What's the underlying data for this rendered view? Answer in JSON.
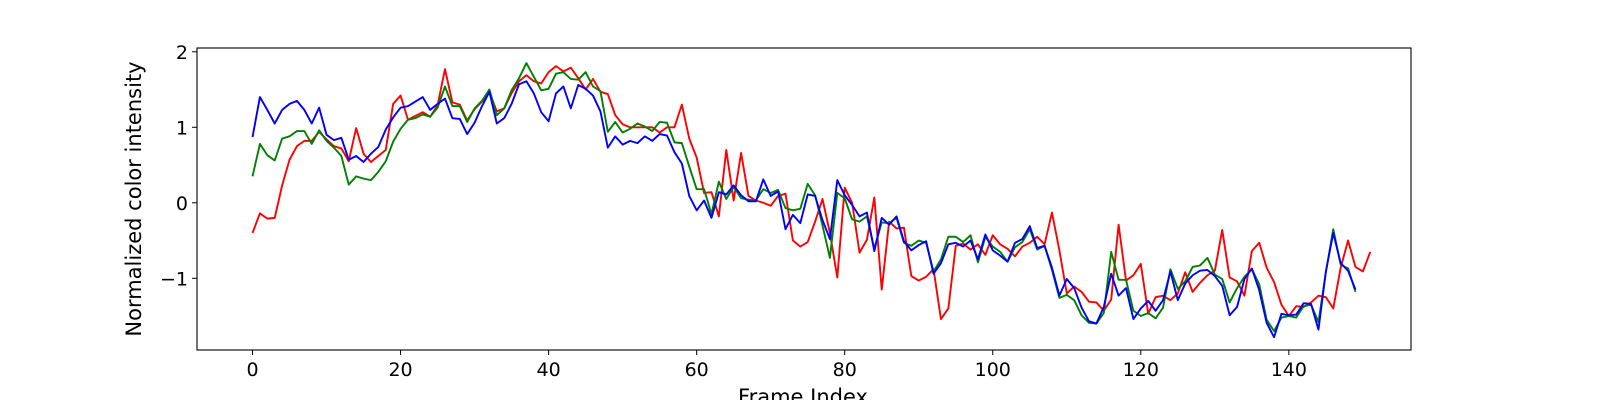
{
  "chart_data": {
    "type": "line",
    "title": "",
    "xlabel": "Frame Index",
    "ylabel": "Normalized color intensity",
    "xlim": [
      -7.5,
      156.5
    ],
    "ylim": [
      -1.95,
      2.05
    ],
    "xticks": [
      0,
      20,
      40,
      60,
      80,
      100,
      120,
      140
    ],
    "yticks": [
      -1,
      0,
      1,
      2
    ],
    "grid": false,
    "legend": "none",
    "series": [
      {
        "color": "#ff0000",
        "values": [
          -0.4,
          -0.14,
          -0.21,
          -0.2,
          0.23,
          0.57,
          0.75,
          0.82,
          0.82,
          0.94,
          0.84,
          0.75,
          0.72,
          0.55,
          0.99,
          0.65,
          0.54,
          0.62,
          0.7,
          1.31,
          1.42,
          1.1,
          1.15,
          1.2,
          1.14,
          1.29,
          1.77,
          1.33,
          1.3,
          1.09,
          1.24,
          1.34,
          1.47,
          1.21,
          1.25,
          1.45,
          1.61,
          1.69,
          1.61,
          1.58,
          1.73,
          1.81,
          1.74,
          1.79,
          1.65,
          1.5,
          1.64,
          1.47,
          1.44,
          1.16,
          1.04,
          1.0,
          1.0,
          1.0,
          1.0,
          0.93,
          1.0,
          1.0,
          1.3,
          0.85,
          0.6,
          0.13,
          0.14,
          -0.18,
          0.7,
          0.03,
          0.66,
          0.09,
          0.03,
          0.0,
          -0.04,
          0.09,
          0.12,
          -0.5,
          -0.58,
          -0.52,
          -0.25,
          0.05,
          -0.4,
          -0.99,
          0.2,
          0.0,
          -0.66,
          -0.49,
          0.07,
          -1.15,
          -0.25,
          -0.34,
          -0.33,
          -0.97,
          -1.03,
          -0.98,
          -0.88,
          -1.54,
          -1.4,
          -0.57,
          -0.54,
          -0.62,
          -0.55,
          -0.69,
          -0.43,
          -0.55,
          -0.61,
          -0.71,
          -0.58,
          -0.53,
          -0.45,
          -0.55,
          -0.13,
          -0.63,
          -1.2,
          -1.11,
          -1.18,
          -1.31,
          -1.32,
          -1.43,
          -1.28,
          -0.29,
          -1.03,
          -0.96,
          -0.81,
          -1.47,
          -1.25,
          -1.23,
          -1.29,
          -1.2,
          -0.92,
          -1.18,
          -1.06,
          -0.96,
          -0.9,
          -0.36,
          -0.99,
          -1.04,
          -1.23,
          -0.64,
          -0.53,
          -0.86,
          -1.05,
          -1.35,
          -1.5,
          -1.37,
          -1.38,
          -1.32,
          -1.23,
          -1.25,
          -1.4,
          -0.86,
          -0.5,
          -0.85,
          -0.91,
          -0.65
        ]
      },
      {
        "color": "#008000",
        "values": [
          0.35,
          0.78,
          0.63,
          0.56,
          0.85,
          0.88,
          0.95,
          0.95,
          0.78,
          0.96,
          0.82,
          0.73,
          0.62,
          0.24,
          0.35,
          0.32,
          0.3,
          0.41,
          0.55,
          0.81,
          0.98,
          1.1,
          1.12,
          1.17,
          1.14,
          1.26,
          1.54,
          1.28,
          1.28,
          1.07,
          1.25,
          1.35,
          1.5,
          1.16,
          1.25,
          1.49,
          1.65,
          1.85,
          1.67,
          1.49,
          1.51,
          1.71,
          1.73,
          1.64,
          1.63,
          1.73,
          1.54,
          1.48,
          0.94,
          1.07,
          0.93,
          0.98,
          1.05,
          1.01,
          0.95,
          1.07,
          1.06,
          0.8,
          0.79,
          0.48,
          0.18,
          0.18,
          -0.15,
          0.28,
          0.05,
          0.21,
          0.06,
          0.04,
          0.03,
          0.18,
          0.13,
          0.17,
          -0.07,
          -0.1,
          -0.08,
          0.25,
          0.1,
          -0.3,
          -0.73,
          0.13,
          0.06,
          -0.22,
          -0.25,
          -0.18,
          -0.61,
          -0.26,
          -0.27,
          -0.2,
          -0.53,
          -0.57,
          -0.5,
          -0.53,
          -0.91,
          -0.75,
          -0.45,
          -0.45,
          -0.52,
          -0.43,
          -0.79,
          -0.45,
          -0.58,
          -0.65,
          -0.78,
          -0.59,
          -0.52,
          -0.35,
          -0.62,
          -0.57,
          -0.89,
          -1.26,
          -1.22,
          -1.29,
          -1.49,
          -1.59,
          -1.6,
          -1.46,
          -0.65,
          -1.02,
          -1.02,
          -1.43,
          -1.5,
          -1.46,
          -1.53,
          -1.39,
          -0.88,
          -1.14,
          -1.04,
          -0.85,
          -0.83,
          -0.73,
          -0.95,
          -1.01,
          -1.32,
          -1.13,
          -0.98,
          -0.88,
          -1.08,
          -1.55,
          -1.7,
          -1.52,
          -1.5,
          -1.52,
          -1.37,
          -1.35,
          -1.58,
          -0.92,
          -0.35,
          -0.82,
          -0.87,
          -1.18
        ]
      },
      {
        "color": "#0000ff",
        "values": [
          0.87,
          1.4,
          1.23,
          1.05,
          1.23,
          1.31,
          1.35,
          1.23,
          1.05,
          1.26,
          0.9,
          0.83,
          0.86,
          0.57,
          0.62,
          0.54,
          0.65,
          0.74,
          0.97,
          1.13,
          1.26,
          1.28,
          1.34,
          1.4,
          1.23,
          1.31,
          1.38,
          1.12,
          1.11,
          0.91,
          1.06,
          1.28,
          1.47,
          1.05,
          1.12,
          1.31,
          1.57,
          1.61,
          1.45,
          1.2,
          1.08,
          1.45,
          1.54,
          1.25,
          1.56,
          1.51,
          1.42,
          1.21,
          0.73,
          0.88,
          0.77,
          0.82,
          0.79,
          0.88,
          0.82,
          0.91,
          0.89,
          0.67,
          0.52,
          0.09,
          -0.1,
          0.03,
          -0.2,
          0.14,
          0.11,
          0.23,
          0.1,
          0.02,
          0.02,
          0.31,
          0.09,
          0.15,
          -0.35,
          -0.16,
          -0.27,
          0.11,
          0.09,
          -0.23,
          -0.48,
          0.3,
          0.1,
          -0.03,
          -0.18,
          -0.13,
          -0.64,
          -0.2,
          -0.29,
          -0.18,
          -0.51,
          -0.63,
          -0.56,
          -0.51,
          -0.94,
          -0.8,
          -0.55,
          -0.53,
          -0.58,
          -0.5,
          -0.75,
          -0.42,
          -0.63,
          -0.7,
          -0.78,
          -0.53,
          -0.48,
          -0.31,
          -0.6,
          -0.57,
          -0.86,
          -1.23,
          -1.01,
          -1.13,
          -1.39,
          -1.57,
          -1.6,
          -1.38,
          -0.94,
          -1.23,
          -1.13,
          -1.54,
          -1.4,
          -1.3,
          -1.43,
          -1.29,
          -0.91,
          -1.29,
          -1.07,
          -0.96,
          -0.9,
          -0.89,
          -0.97,
          -1.1,
          -1.49,
          -1.38,
          -1.01,
          -0.87,
          -1.16,
          -1.59,
          -1.78,
          -1.47,
          -1.49,
          -1.48,
          -1.33,
          -1.34,
          -1.68,
          -0.91,
          -0.4,
          -0.8,
          -0.9,
          -1.15
        ]
      }
    ]
  }
}
